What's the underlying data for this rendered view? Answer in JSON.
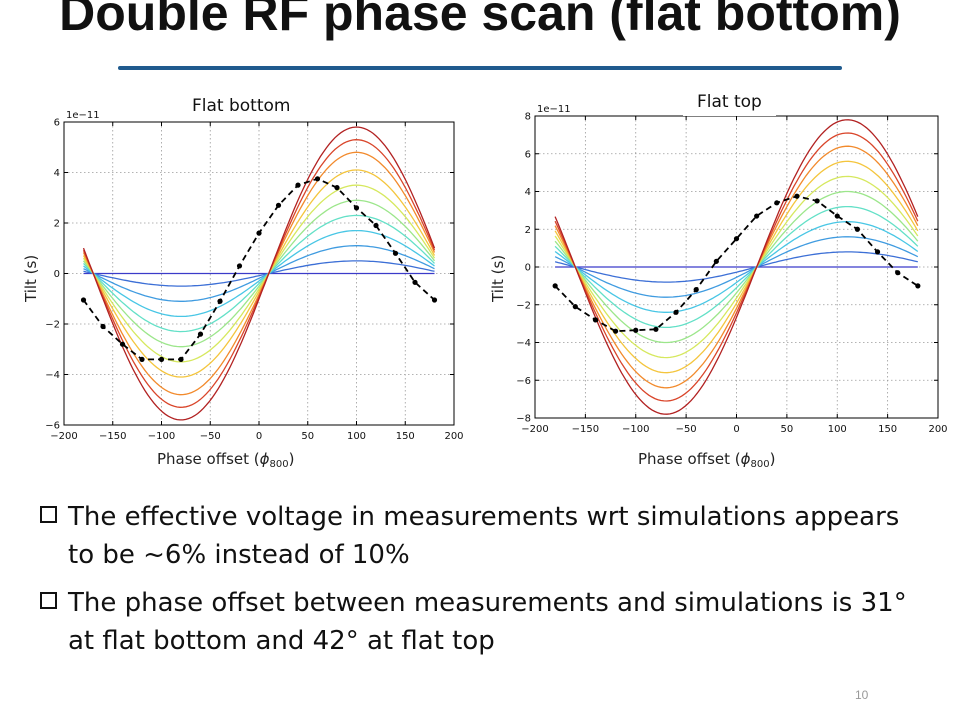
{
  "slide": {
    "title": "Double RF phase scan (flat bottom)",
    "page_number": "10"
  },
  "bullets": [
    "The effective voltage in measurements wrt simulations appears to be ~6% instead of 10%",
    "The phase offset between measurements and simulations is 31° at flat bottom and 42° at flat top"
  ],
  "chart_data": [
    {
      "type": "line",
      "panel_label": "Flat bottom",
      "xlabel": "Phase offset (",
      "xlabel_symbol": "ϕ",
      "xlabel_sub": "800",
      "xlabel_close": ")",
      "ylabel": "Tilt (s)",
      "y_multiplier": "1e−11",
      "xlim": [
        -200,
        200
      ],
      "ylim": [
        -6,
        6
      ],
      "xticks": [
        -200,
        -150,
        -100,
        -50,
        0,
        50,
        100,
        150,
        200
      ],
      "yticks": [
        -6,
        -4,
        -2,
        0,
        2,
        4,
        6
      ],
      "grid": true,
      "simulation_curves": {
        "x_range": [
          -180,
          180
        ],
        "node": 10,
        "amplitudes": [
          0,
          0.5,
          1.1,
          1.7,
          2.3,
          2.9,
          3.5,
          4.1,
          4.8,
          5.3,
          5.8
        ],
        "colors": [
          "#3b3bc9",
          "#3c6fd6",
          "#3f9be0",
          "#48c6e5",
          "#63e0c7",
          "#9ce68b",
          "#d6e85e",
          "#f4c53d",
          "#f28a2c",
          "#d9452a",
          "#b22222"
        ]
      },
      "measurement": {
        "x": [
          -180,
          -160,
          -140,
          -120,
          -100,
          -80,
          -60,
          -40,
          -20,
          0,
          20,
          40,
          60,
          80,
          100,
          120,
          140,
          160,
          180
        ],
        "y": [
          -1.05,
          -2.1,
          -2.8,
          -3.4,
          -3.4,
          -3.4,
          -2.4,
          -1.1,
          0.3,
          1.6,
          2.7,
          3.5,
          3.75,
          3.4,
          2.6,
          1.9,
          0.8,
          -0.35,
          -1.05
        ]
      }
    },
    {
      "type": "line",
      "panel_label": "Flat top",
      "xlabel": "Phase offset (",
      "xlabel_symbol": "ϕ",
      "xlabel_sub": "800",
      "xlabel_close": ")",
      "ylabel": "Tilt (s)",
      "y_multiplier": "1e−11",
      "xlim": [
        -200,
        200
      ],
      "ylim": [
        -8,
        8
      ],
      "xticks": [
        -200,
        -150,
        -100,
        -50,
        0,
        50,
        100,
        150,
        200
      ],
      "yticks": [
        -8,
        -6,
        -4,
        -2,
        0,
        2,
        4,
        6,
        8
      ],
      "grid": true,
      "simulation_curves": {
        "x_range": [
          -180,
          180
        ],
        "node": 20,
        "amplitudes": [
          0,
          0.8,
          1.6,
          2.4,
          3.2,
          4.0,
          4.8,
          5.6,
          6.4,
          7.1,
          7.8
        ],
        "colors": [
          "#3b3bc9",
          "#3c6fd6",
          "#3f9be0",
          "#48c6e5",
          "#63e0c7",
          "#9ce68b",
          "#d6e85e",
          "#f4c53d",
          "#f28a2c",
          "#d9452a",
          "#b22222"
        ]
      },
      "measurement": {
        "x": [
          -180,
          -160,
          -140,
          -120,
          -100,
          -80,
          -60,
          -40,
          -20,
          0,
          20,
          40,
          60,
          80,
          100,
          120,
          140,
          160,
          180
        ],
        "y": [
          -1.0,
          -2.1,
          -2.8,
          -3.4,
          -3.35,
          -3.3,
          -2.4,
          -1.2,
          0.3,
          1.5,
          2.7,
          3.4,
          3.75,
          3.5,
          2.7,
          2.0,
          0.8,
          -0.3,
          -1.0
        ]
      }
    }
  ]
}
